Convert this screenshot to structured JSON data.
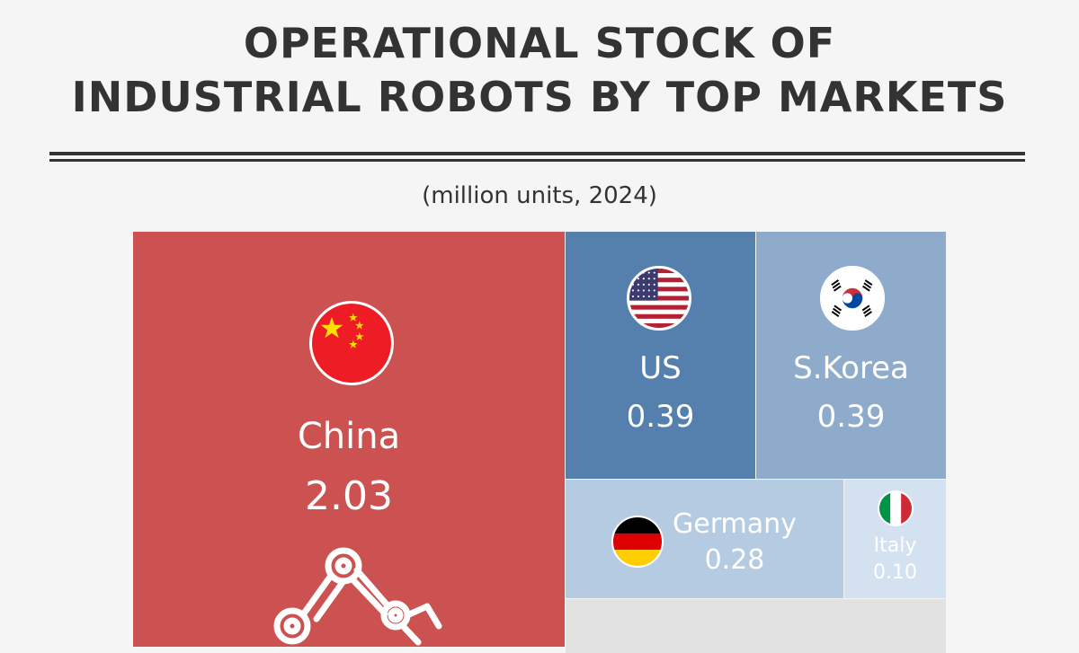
{
  "title_lines": [
    "OPERATIONAL STOCK OF",
    "INDUSTRIAL ROBOTS BY TOP MARKETS"
  ],
  "subtitle": "(million units, 2024)",
  "colors": {
    "background": "#f5f5f5",
    "text": "#333333",
    "china": "#cc5252",
    "us": "#5580ad",
    "skorea": "#8eabcb",
    "germany": "#b5cbe2",
    "italy": "#d3e1f1",
    "other": "#e2e2e2"
  },
  "chart_data": {
    "type": "treemap",
    "title": "OPERATIONAL STOCK OF INDUSTRIAL ROBOTS BY TOP MARKETS",
    "unit": "(million units, 2024)",
    "items": [
      {
        "key": "china",
        "label": "China",
        "value": 2.03,
        "value_label": "2.03",
        "flag": "china-flag-icon",
        "color": "#cc5252"
      },
      {
        "key": "us",
        "label": "US",
        "value": 0.39,
        "value_label": "0.39",
        "flag": "us-flag-icon",
        "color": "#5580ad"
      },
      {
        "key": "skorea",
        "label": "S.Korea",
        "value": 0.39,
        "value_label": "0.39",
        "flag": "south-korea-flag-icon",
        "color": "#8eabcb"
      },
      {
        "key": "germany",
        "label": "Germany",
        "value": 0.28,
        "value_label": "0.28",
        "flag": "germany-flag-icon",
        "color": "#b5cbe2"
      },
      {
        "key": "italy",
        "label": "Italy",
        "value": 0.1,
        "value_label": "0.10",
        "flag": "italy-flag-icon",
        "color": "#d3e1f1"
      }
    ]
  }
}
